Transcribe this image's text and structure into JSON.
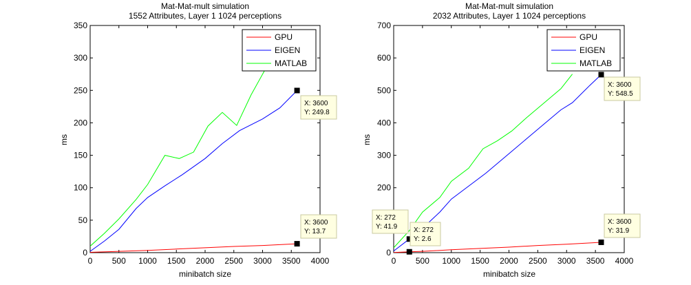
{
  "chart_data": [
    {
      "type": "line",
      "title": "Mat-Mat-mult simulation",
      "subtitle": "1552 Attributes, Layer 1 1024 perceptions",
      "xlabel": "minibatch size",
      "ylabel": "ms",
      "xlim": [
        0,
        4000
      ],
      "ylim": [
        0,
        350
      ],
      "xticks": [
        0,
        500,
        1000,
        1500,
        2000,
        2500,
        3000,
        3500,
        4000
      ],
      "yticks": [
        0,
        50,
        100,
        150,
        200,
        250,
        300,
        350
      ],
      "grid": false,
      "legend_position": "top-right",
      "series": [
        {
          "name": "GPU",
          "color": "#ff0000",
          "x": [
            0,
            500,
            1000,
            1500,
            2000,
            2500,
            3000,
            3600
          ],
          "y": [
            0.5,
            2,
            3.5,
            5.5,
            7.5,
            9.5,
            11,
            13.7
          ]
        },
        {
          "name": "EIGEN",
          "color": "#0000ff",
          "x": [
            0,
            250,
            500,
            800,
            1000,
            1300,
            1600,
            2000,
            2300,
            2600,
            3000,
            3300,
            3600
          ],
          "y": [
            2,
            18,
            36,
            68,
            85,
            103,
            120,
            145,
            168,
            188,
            206,
            223,
            249.8
          ]
        },
        {
          "name": "MATLAB",
          "color": "#00ff00",
          "x": [
            0,
            250,
            500,
            800,
            1000,
            1300,
            1550,
            1800,
            2050,
            2300,
            2550,
            2800,
            3050,
            3200
          ],
          "y": [
            10,
            30,
            52,
            82,
            105,
            150,
            145,
            155,
            195,
            216,
            196,
            243,
            283,
            300
          ]
        }
      ],
      "datatips": [
        {
          "x": 3600,
          "y": 249.8,
          "x_label": "X: 3600",
          "y_label": "Y: 249.8"
        },
        {
          "x": 3600,
          "y": 13.7,
          "x_label": "X: 3600",
          "y_label": "Y: 13.7"
        }
      ]
    },
    {
      "type": "line",
      "title": "Mat-Mat-mult simulation",
      "subtitle": "2032 Attributes, Layer 1 1024 perceptions",
      "xlabel": "minibatch size",
      "ylabel": "ms",
      "xlim": [
        0,
        4000
      ],
      "ylim": [
        0,
        700
      ],
      "xticks": [
        0,
        500,
        1000,
        1500,
        2000,
        2500,
        3000,
        3500,
        4000
      ],
      "yticks": [
        0,
        100,
        200,
        300,
        400,
        500,
        600,
        700
      ],
      "grid": false,
      "legend_position": "top-right",
      "series": [
        {
          "name": "GPU",
          "color": "#ff0000",
          "x": [
            0,
            272,
            500,
            1000,
            1500,
            2000,
            2500,
            3000,
            3600
          ],
          "y": [
            0.5,
            2.6,
            4,
            9,
            13,
            17,
            22,
            26,
            31.9
          ]
        },
        {
          "name": "EIGEN",
          "color": "#0000ff",
          "x": [
            0,
            272,
            500,
            800,
            1000,
            1300,
            1600,
            2000,
            2300,
            2600,
            2900,
            3100,
            3400,
            3600
          ],
          "y": [
            5,
            41.9,
            75,
            125,
            165,
            205,
            245,
            305,
            350,
            395,
            440,
            462,
            515,
            548.5
          ]
        },
        {
          "name": "MATLAB",
          "color": "#00ff00",
          "x": [
            0,
            272,
            500,
            800,
            1000,
            1300,
            1550,
            1800,
            2050,
            2300,
            2600,
            2900,
            3100
          ],
          "y": [
            15,
            68,
            125,
            170,
            220,
            260,
            320,
            345,
            375,
            415,
            460,
            505,
            550
          ]
        }
      ],
      "datatips": [
        {
          "x": 272,
          "y": 41.9,
          "x_label": "X: 272",
          "y_label": "Y: 41.9"
        },
        {
          "x": 272,
          "y": 2.6,
          "x_label": "X: 272",
          "y_label": "Y: 2.6"
        },
        {
          "x": 3600,
          "y": 548.5,
          "x_label": "X: 3600",
          "y_label": "Y: 548.5"
        },
        {
          "x": 3600,
          "y": 31.9,
          "x_label": "X: 3600",
          "y_label": "Y: 31.9"
        }
      ]
    }
  ]
}
